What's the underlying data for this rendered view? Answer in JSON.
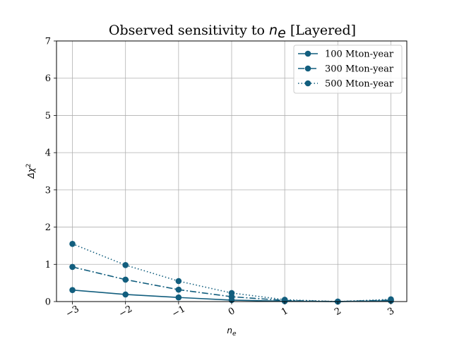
{
  "chart_data": {
    "type": "line",
    "title": {
      "prefix": "Observed sensitivity to ",
      "math_base": "n",
      "math_sub": "e",
      "suffix": " [Layered]"
    },
    "xlabel": {
      "base": "n",
      "sub": "e"
    },
    "ylabel": {
      "base": "Δχ",
      "sup": "2"
    },
    "x": [
      -3,
      -2,
      -1,
      0,
      1,
      2,
      3
    ],
    "x_tick_labels": [
      "−3",
      "−2",
      "−1",
      "0",
      "1",
      "2",
      "3"
    ],
    "y_ticks": [
      0,
      1,
      2,
      3,
      4,
      5,
      6,
      7
    ],
    "y_tick_labels": [
      "0",
      "1",
      "2",
      "3",
      "4",
      "5",
      "6",
      "7"
    ],
    "xlim": [
      -3.3,
      3.3
    ],
    "ylim": [
      0,
      7
    ],
    "grid": true,
    "legend_position": "top-right",
    "color": "#125e7e",
    "series": [
      {
        "name": "100 Mton-year",
        "linestyle": "solid",
        "values": [
          0.31,
          0.19,
          0.11,
          0.04,
          0.01,
          0.0,
          0.02
        ]
      },
      {
        "name": "300 Mton-year",
        "linestyle": "dashdot",
        "values": [
          0.93,
          0.59,
          0.32,
          0.13,
          0.03,
          0.0,
          0.04
        ]
      },
      {
        "name": "500 Mton-year",
        "linestyle": "dotted",
        "values": [
          1.55,
          0.98,
          0.55,
          0.23,
          0.05,
          0.0,
          0.06
        ]
      }
    ]
  }
}
